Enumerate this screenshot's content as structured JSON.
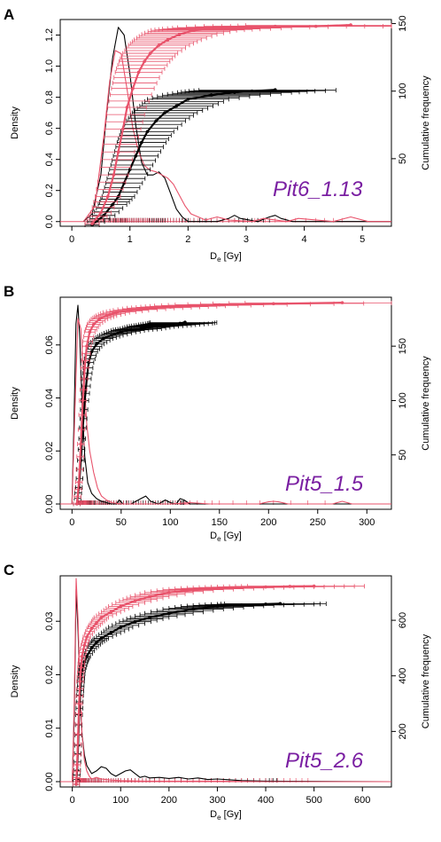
{
  "colors": {
    "black": "#000000",
    "pink": "#e8536b",
    "pink_light": "#f08a9a",
    "annotation": "#7a1fa2"
  },
  "chart_data": [
    {
      "panel": "A",
      "type": "line",
      "annotation": "Pit6_1.13",
      "xlabel_main": "D",
      "xlabel_sub": "e",
      "xlabel_unit": " [Gy]",
      "ylabel_left": "Density",
      "ylabel_right": "Cumulative frequency",
      "xlim": [
        -0.2,
        5.5
      ],
      "ylim_left": [
        -0.03,
        1.3
      ],
      "ylim_right": [
        0,
        153
      ],
      "xticks": [
        "0",
        "1",
        "2",
        "3",
        "4",
        "5"
      ],
      "yticks_left": [
        "0.0",
        "0.2",
        "0.4",
        "0.6",
        "0.8",
        "1.0",
        "1.2"
      ],
      "yticks_right": [
        "50",
        "100",
        "150"
      ],
      "density": [
        {
          "name": "black",
          "x": [
            0.2,
            0.35,
            0.5,
            0.6,
            0.7,
            0.8,
            0.9,
            1.0,
            1.1,
            1.2,
            1.3,
            1.4,
            1.5,
            1.6,
            1.7,
            1.8,
            1.9,
            2.0,
            2.5,
            2.7,
            2.8,
            2.9,
            3.2,
            3.4,
            3.5,
            3.6,
            3.8,
            5.5
          ],
          "y": [
            0.0,
            0.05,
            0.3,
            0.7,
            1.05,
            1.25,
            1.2,
            0.95,
            0.62,
            0.38,
            0.3,
            0.3,
            0.32,
            0.28,
            0.18,
            0.08,
            0.03,
            0.0,
            0.0,
            0.02,
            0.04,
            0.02,
            0.0,
            0.03,
            0.04,
            0.02,
            0.0,
            0.0
          ]
        },
        {
          "name": "pink",
          "x": [
            0.2,
            0.4,
            0.55,
            0.65,
            0.75,
            0.85,
            0.95,
            1.05,
            1.15,
            1.25,
            1.35,
            1.45,
            1.55,
            1.65,
            1.75,
            1.85,
            1.95,
            2.05,
            2.3,
            2.5,
            2.7,
            3.1,
            3.3,
            3.7,
            3.9,
            4.5,
            4.8,
            5.1,
            5.5
          ],
          "y": [
            0.0,
            0.1,
            0.55,
            0.9,
            1.1,
            1.08,
            0.85,
            0.6,
            0.45,
            0.36,
            0.33,
            0.32,
            0.3,
            0.28,
            0.24,
            0.17,
            0.1,
            0.05,
            0.01,
            0.03,
            0.01,
            0.0,
            0.02,
            0.0,
            0.02,
            0.0,
            0.03,
            0.0,
            0.0
          ]
        }
      ],
      "cumulative": [
        {
          "name": "black",
          "x": [
            0.35,
            0.55,
            0.7,
            0.8,
            0.9,
            1.0,
            1.1,
            1.2,
            1.3,
            1.45,
            1.6,
            1.8,
            2.0,
            2.4,
            2.8,
            3.1,
            3.5
          ],
          "y": [
            1,
            8,
            16,
            22,
            32,
            42,
            52,
            62,
            70,
            78,
            84,
            89,
            94,
            97,
            99,
            100,
            101
          ]
        },
        {
          "name": "pink",
          "x": [
            0.35,
            0.5,
            0.62,
            0.72,
            0.8,
            0.88,
            0.95,
            1.05,
            1.15,
            1.25,
            1.35,
            1.5,
            1.65,
            1.85,
            2.1,
            2.4,
            2.8,
            3.5,
            4.2,
            4.8
          ],
          "y": [
            2,
            10,
            22,
            38,
            55,
            72,
            88,
            102,
            114,
            122,
            128,
            134,
            138,
            142,
            145,
            146,
            147,
            148,
            148,
            149
          ]
        }
      ],
      "errorbar_halfwidth_fraction": 0.35
    },
    {
      "panel": "B",
      "type": "line",
      "annotation": "Pit5_1.5",
      "xlabel_main": "D",
      "xlabel_sub": "e",
      "xlabel_unit": " [Gy]",
      "ylabel_left": "Density",
      "ylabel_right": "Cumulative frequency",
      "xlim": [
        -12,
        325
      ],
      "ylim_left": [
        -0.002,
        0.078
      ],
      "ylim_right": [
        0,
        195
      ],
      "xticks": [
        "0",
        "50",
        "100",
        "150",
        "200",
        "250",
        "300"
      ],
      "yticks_left": [
        "0.00",
        "0.02",
        "0.04",
        "0.06"
      ],
      "yticks_right": [
        "50",
        "100",
        "150"
      ],
      "density": [
        {
          "name": "black",
          "x": [
            0,
            2,
            4,
            6,
            8,
            10,
            13,
            16,
            20,
            25,
            30,
            35,
            40,
            45,
            48,
            52,
            60,
            70,
            75,
            80,
            88,
            95,
            100,
            106,
            110,
            114,
            120,
            325
          ],
          "y": [
            0.0,
            0.03,
            0.068,
            0.075,
            0.062,
            0.04,
            0.018,
            0.008,
            0.004,
            0.002,
            0.001,
            0.0005,
            0.0,
            0.0,
            0.0015,
            0.0,
            0.0,
            0.002,
            0.003,
            0.001,
            0.0,
            0.0015,
            0.0005,
            0.0,
            0.002,
            0.0015,
            0.0,
            0.0
          ]
        },
        {
          "name": "pink",
          "x": [
            0,
            3,
            6,
            9,
            12,
            15,
            18,
            22,
            26,
            30,
            35,
            40,
            50,
            60,
            100,
            120,
            140,
            190,
            200,
            205,
            210,
            220,
            265,
            275,
            285,
            325
          ],
          "y": [
            0.0,
            0.035,
            0.07,
            0.066,
            0.048,
            0.03,
            0.02,
            0.012,
            0.006,
            0.003,
            0.0015,
            0.0005,
            0.0,
            0.0,
            0.0,
            0.0005,
            0.0,
            0.0,
            0.0008,
            0.001,
            0.0008,
            0.0,
            0.0,
            0.001,
            0.0,
            0.0
          ]
        }
      ],
      "cumulative": [
        {
          "name": "black",
          "x": [
            5,
            7,
            9,
            11,
            13,
            15,
            17,
            20,
            25,
            32,
            40,
            50,
            60,
            70,
            80,
            90,
            100,
            110,
            115
          ],
          "y": [
            5,
            20,
            45,
            75,
            100,
            120,
            135,
            145,
            152,
            157,
            160,
            163,
            165,
            166,
            168,
            169,
            170,
            171,
            172
          ]
        },
        {
          "name": "pink",
          "x": [
            5,
            7,
            9,
            11,
            13,
            15,
            18,
            22,
            28,
            35,
            45,
            60,
            80,
            100,
            120,
            150,
            205,
            275
          ],
          "y": [
            5,
            25,
            60,
            100,
            130,
            150,
            163,
            170,
            175,
            178,
            181,
            183,
            185,
            186,
            187,
            188,
            189,
            190
          ]
        }
      ],
      "errorbar_halfwidth_fraction": 0.3
    },
    {
      "panel": "C",
      "type": "line",
      "annotation": "Pit5_2.6",
      "xlabel_main": "D",
      "xlabel_sub": "e",
      "xlabel_unit": " [Gy]",
      "ylabel_left": "Density",
      "ylabel_right": "Cumulative frequency",
      "xlim": [
        -25,
        660
      ],
      "ylim_left": [
        -0.001,
        0.0385
      ],
      "ylim_right": [
        0,
        760
      ],
      "xticks": [
        "0",
        "100",
        "200",
        "300",
        "400",
        "500",
        "600"
      ],
      "yticks_left": [
        "0.00",
        "0.01",
        "0.02",
        "0.03"
      ],
      "yticks_right": [
        "200",
        "400",
        "600"
      ],
      "density": [
        {
          "name": "black",
          "x": [
            0,
            4,
            8,
            12,
            16,
            20,
            25,
            30,
            40,
            50,
            60,
            70,
            80,
            90,
            100,
            110,
            120,
            130,
            140,
            150,
            160,
            180,
            200,
            220,
            240,
            260,
            280,
            300,
            350,
            400,
            660
          ],
          "y": [
            0.0,
            0.012,
            0.036,
            0.028,
            0.016,
            0.009,
            0.005,
            0.003,
            0.0015,
            0.002,
            0.0028,
            0.0025,
            0.0015,
            0.001,
            0.0015,
            0.002,
            0.0022,
            0.0015,
            0.0008,
            0.001,
            0.0007,
            0.0008,
            0.0006,
            0.0008,
            0.0005,
            0.0007,
            0.0004,
            0.0005,
            0.0002,
            0.0001,
            0.0
          ]
        },
        {
          "name": "pink",
          "x": [
            0,
            4,
            8,
            12,
            16,
            20,
            25,
            30,
            35,
            40,
            50,
            60,
            80,
            100,
            150,
            200,
            300,
            400,
            500,
            660
          ],
          "y": [
            0.0,
            0.015,
            0.038,
            0.03,
            0.017,
            0.009,
            0.004,
            0.002,
            0.001,
            0.0005,
            0.0008,
            0.0005,
            0.0003,
            0.0002,
            0.0001,
            0.0001,
            0.0001,
            0.0,
            0.0,
            0.0
          ]
        }
      ],
      "cumulative": [
        {
          "name": "black",
          "x": [
            8,
            10,
            12,
            14,
            16,
            18,
            20,
            25,
            30,
            40,
            50,
            60,
            80,
            100,
            130,
            160,
            200,
            250,
            300,
            350,
            400,
            430
          ],
          "y": [
            10,
            60,
            150,
            260,
            330,
            380,
            420,
            450,
            470,
            500,
            520,
            535,
            555,
            575,
            595,
            610,
            625,
            640,
            650,
            655,
            658,
            660
          ]
        },
        {
          "name": "pink",
          "x": [
            8,
            10,
            12,
            14,
            16,
            18,
            20,
            25,
            30,
            40,
            50,
            60,
            80,
            100,
            130,
            160,
            200,
            250,
            300,
            350,
            400,
            450,
            500
          ],
          "y": [
            10,
            80,
            190,
            300,
            380,
            430,
            470,
            510,
            540,
            570,
            590,
            610,
            630,
            650,
            670,
            685,
            700,
            710,
            715,
            718,
            720,
            722,
            723
          ]
        }
      ],
      "errorbar_halfwidth_fraction": 0.25
    }
  ]
}
